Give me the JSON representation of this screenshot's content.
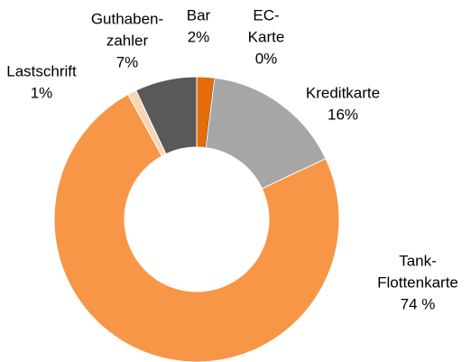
{
  "chart_data": {
    "type": "donut",
    "categories": [
      [
        "Bar"
      ],
      [
        "EC-",
        "Karte"
      ],
      [
        "Kreditkarte"
      ],
      [
        "Tank-",
        "Flottenkarte"
      ],
      [
        "Lastschrift"
      ],
      [
        "Guthaben-",
        "zahler"
      ]
    ],
    "values": [
      2,
      0,
      16,
      74,
      1,
      7
    ],
    "value_labels": [
      "2%",
      "0%",
      "16%",
      "74 %",
      "1%",
      "7%"
    ],
    "colors": [
      "#e46c0a",
      "#000000",
      "#a6a6a6",
      "#f79646",
      "#fbd4b4",
      "#595959"
    ]
  }
}
